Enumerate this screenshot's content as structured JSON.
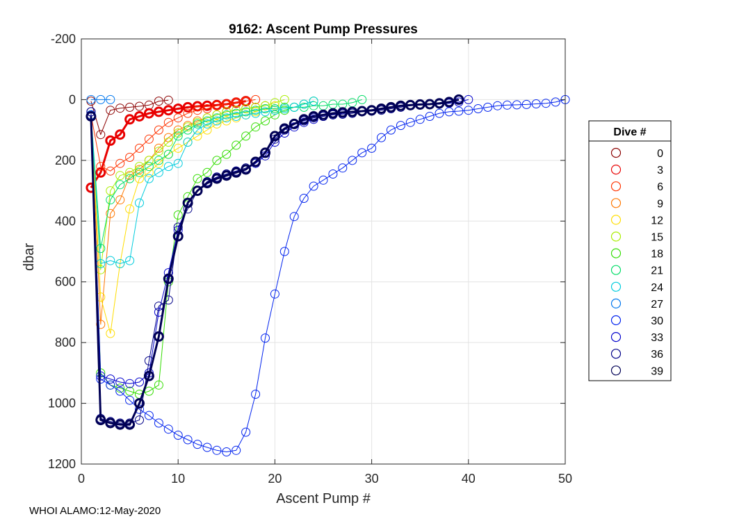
{
  "chart_data": {
    "type": "line",
    "title": "9162: Ascent Pump Pressures",
    "xlabel": "Ascent Pump #",
    "ylabel": "dbar",
    "xlim": [
      0,
      50
    ],
    "ylim": [
      -200,
      1200
    ],
    "y_reversed": true,
    "xticks": [
      0,
      10,
      20,
      30,
      40,
      50
    ],
    "yticks": [
      -200,
      0,
      200,
      400,
      600,
      800,
      1000,
      1200
    ],
    "grid": true,
    "legend_title": "Dive #",
    "legend_position": "outside-right",
    "series": [
      {
        "name": "0",
        "color": "#8b0000",
        "bold": false,
        "x": [
          1,
          2,
          3,
          4,
          5,
          6,
          7,
          8,
          9
        ],
        "y": [
          5,
          115,
          35,
          28,
          25,
          22,
          18,
          5,
          2
        ]
      },
      {
        "name": "3",
        "color": "#e80000",
        "bold": true,
        "x": [
          1,
          2,
          3,
          4,
          5,
          6,
          7,
          8,
          9,
          10,
          11,
          12,
          13,
          14,
          15,
          16,
          17
        ],
        "y": [
          290,
          240,
          135,
          115,
          65,
          55,
          45,
          40,
          35,
          30,
          25,
          22,
          20,
          18,
          15,
          10,
          5
        ]
      },
      {
        "name": "6",
        "color": "#ff3300",
        "bold": false,
        "x": [
          1,
          2,
          3,
          4,
          5,
          6,
          7,
          8,
          9,
          10,
          11,
          12,
          13,
          14,
          15,
          16,
          17,
          18
        ],
        "y": [
          50,
          220,
          235,
          210,
          190,
          160,
          130,
          100,
          75,
          60,
          45,
          35,
          30,
          20,
          15,
          10,
          5,
          0
        ]
      },
      {
        "name": "9",
        "color": "#ff7700",
        "bold": false,
        "x": [
          1,
          2,
          3,
          4,
          5,
          6,
          7,
          8,
          9,
          10,
          11,
          12,
          13,
          14,
          15,
          16,
          17,
          18,
          19
        ],
        "y": [
          50,
          740,
          375,
          330,
          250,
          230,
          200,
          160,
          125,
          100,
          85,
          70,
          60,
          50,
          40,
          35,
          30,
          25,
          20
        ]
      },
      {
        "name": "12",
        "color": "#ffdd00",
        "bold": false,
        "x": [
          1,
          2,
          3,
          4,
          5,
          6,
          7,
          8,
          9,
          10,
          11,
          12,
          13,
          14,
          15,
          16,
          17,
          18,
          19,
          20
        ],
        "y": [
          50,
          650,
          770,
          540,
          360,
          260,
          240,
          210,
          180,
          160,
          140,
          120,
          100,
          80,
          70,
          60,
          50,
          40,
          30,
          20
        ]
      },
      {
        "name": "15",
        "color": "#aaee00",
        "bold": false,
        "x": [
          1,
          2,
          3,
          4,
          5,
          6,
          7,
          8,
          9,
          10,
          11,
          12,
          13,
          14,
          15,
          16,
          17,
          18,
          19,
          20,
          21
        ],
        "y": [
          50,
          560,
          300,
          250,
          240,
          220,
          200,
          170,
          140,
          110,
          90,
          75,
          60,
          50,
          40,
          35,
          30,
          25,
          20,
          10,
          0
        ]
      },
      {
        "name": "18",
        "color": "#33dd00",
        "bold": false,
        "x": [
          1,
          2,
          3,
          4,
          5,
          6,
          7,
          8,
          9,
          10,
          11,
          12,
          13,
          14,
          15,
          16,
          17,
          18,
          19,
          20,
          21,
          22,
          23,
          24
        ],
        "y": [
          50,
          900,
          940,
          950,
          960,
          970,
          960,
          940,
          600,
          380,
          320,
          260,
          240,
          200,
          180,
          150,
          120,
          90,
          70,
          50,
          35,
          25,
          15,
          5
        ]
      },
      {
        "name": "21",
        "color": "#00dd66",
        "bold": false,
        "x": [
          1,
          2,
          3,
          4,
          5,
          6,
          7,
          8,
          9,
          10,
          11,
          12,
          13,
          14,
          15,
          16,
          17,
          18,
          19,
          20,
          21,
          22,
          23,
          24,
          25,
          26,
          27,
          28,
          29
        ],
        "y": [
          50,
          490,
          330,
          280,
          260,
          240,
          220,
          200,
          180,
          120,
          100,
          80,
          70,
          60,
          50,
          45,
          40,
          35,
          30,
          30,
          25,
          25,
          25,
          20,
          20,
          15,
          15,
          10,
          0
        ]
      },
      {
        "name": "24",
        "color": "#00ccdd",
        "bold": false,
        "x": [
          1,
          2,
          3,
          4,
          5,
          6,
          7,
          8,
          9,
          10,
          11,
          12,
          13,
          14,
          15,
          16,
          17,
          18,
          19,
          20,
          21,
          22,
          23,
          24
        ],
        "y": [
          50,
          540,
          530,
          540,
          530,
          340,
          260,
          240,
          220,
          210,
          140,
          100,
          80,
          70,
          60,
          55,
          50,
          45,
          40,
          35,
          30,
          25,
          15,
          5
        ]
      },
      {
        "name": "27",
        "color": "#0077ee",
        "bold": false,
        "x": [
          1,
          2,
          3
        ],
        "y": [
          0,
          0,
          0
        ]
      },
      {
        "name": "30",
        "color": "#0022ee",
        "bold": false,
        "x": [
          1,
          2,
          3,
          4,
          5,
          6,
          7,
          8,
          9,
          10,
          11,
          12,
          13,
          14,
          15,
          16,
          17,
          18,
          19,
          20,
          21,
          22,
          23,
          24,
          25,
          26,
          27,
          28,
          29,
          30,
          31,
          32,
          33,
          34,
          35,
          36,
          37,
          38,
          39,
          40,
          41,
          42,
          43,
          44,
          45,
          46,
          47,
          48,
          49,
          50
        ],
        "y": [
          50,
          920,
          940,
          960,
          990,
          1020,
          1040,
          1065,
          1085,
          1105,
          1120,
          1135,
          1145,
          1155,
          1160,
          1155,
          1095,
          970,
          785,
          640,
          500,
          385,
          325,
          285,
          265,
          245,
          225,
          200,
          175,
          160,
          125,
          100,
          85,
          75,
          65,
          55,
          45,
          40,
          38,
          35,
          30,
          25,
          20,
          18,
          17,
          16,
          14,
          12,
          8,
          0
        ]
      },
      {
        "name": "33",
        "color": "#0000cc",
        "bold": false,
        "x": [
          1,
          2,
          3,
          4,
          5,
          6,
          7,
          8,
          9,
          10,
          11,
          12,
          13,
          14,
          15,
          16,
          17,
          18,
          19,
          20,
          21,
          22,
          23,
          24,
          25,
          26,
          27,
          28,
          29,
          30,
          31,
          32,
          33,
          34,
          35,
          36,
          37,
          38,
          39,
          40
        ],
        "y": [
          40,
          910,
          920,
          930,
          935,
          930,
          900,
          700,
          570,
          430,
          340,
          300,
          270,
          255,
          245,
          235,
          230,
          210,
          185,
          140,
          110,
          90,
          75,
          65,
          55,
          50,
          45,
          42,
          40,
          35,
          30,
          25,
          20,
          18,
          16,
          15,
          14,
          12,
          8,
          0
        ]
      },
      {
        "name": "36",
        "color": "#000088",
        "bold": false,
        "x": [
          1,
          2,
          3,
          4,
          5,
          6,
          7,
          8,
          9,
          10,
          11,
          12,
          13,
          14,
          15,
          16,
          17,
          18,
          19,
          20,
          21,
          22,
          23,
          24,
          25,
          26,
          27,
          28,
          29,
          30,
          31,
          32,
          33,
          34,
          35,
          36,
          37,
          38,
          39
        ],
        "y": [
          40,
          1050,
          1060,
          1065,
          1065,
          1055,
          860,
          680,
          660,
          420,
          360,
          300,
          270,
          255,
          245,
          235,
          225,
          205,
          175,
          130,
          100,
          80,
          70,
          60,
          55,
          50,
          48,
          45,
          40,
          38,
          35,
          30,
          25,
          20,
          18,
          16,
          15,
          10,
          0
        ]
      },
      {
        "name": "39",
        "color": "#000055",
        "bold": true,
        "x": [
          1,
          2,
          3,
          4,
          5,
          6,
          7,
          8,
          9,
          10,
          11,
          12,
          13,
          14,
          15,
          16,
          17,
          18,
          19,
          20,
          21,
          22,
          23,
          24,
          25,
          26,
          27,
          28,
          29,
          30,
          31,
          32,
          33,
          34,
          35,
          36,
          37,
          38,
          39
        ],
        "y": [
          55,
          1055,
          1065,
          1070,
          1070,
          1000,
          910,
          780,
          590,
          450,
          340,
          300,
          275,
          260,
          250,
          240,
          230,
          205,
          175,
          120,
          95,
          80,
          65,
          55,
          50,
          45,
          42,
          40,
          38,
          35,
          30,
          25,
          20,
          18,
          16,
          15,
          12,
          8,
          0
        ]
      }
    ]
  },
  "footer": "WHOI ALAMO:12-May-2020"
}
